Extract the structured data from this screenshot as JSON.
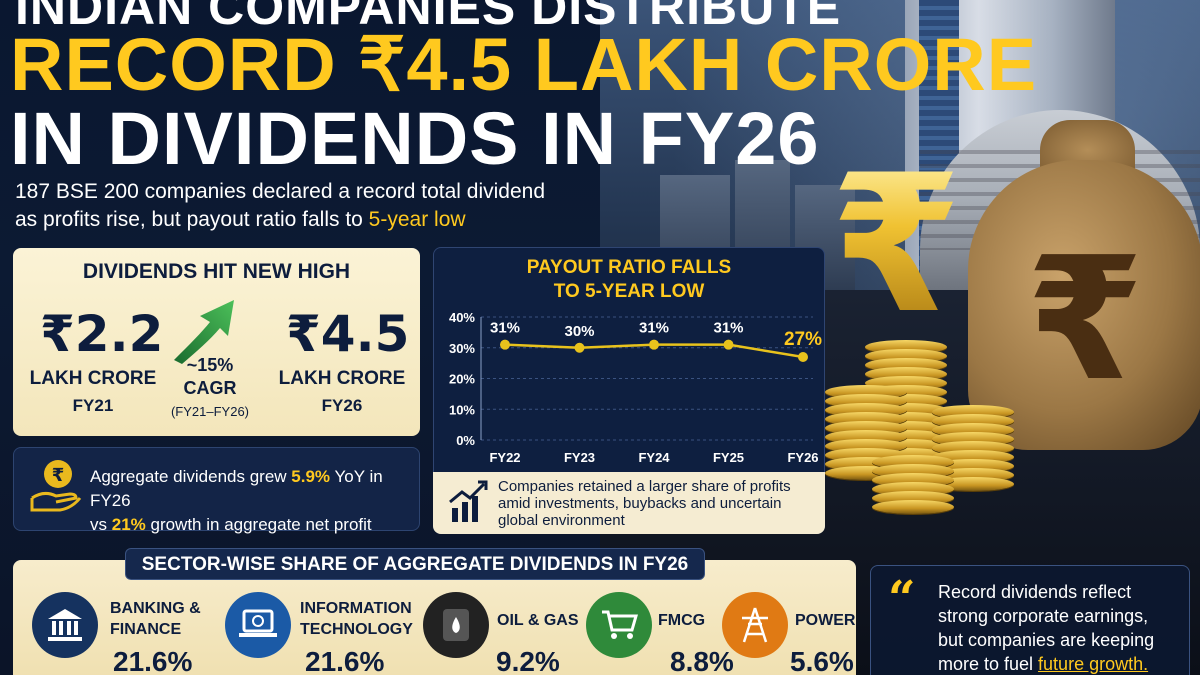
{
  "headline": {
    "line0": "INDIAN COMPANIES DISTRIBUTE",
    "line1": "RECORD ₹4.5 LAKH CRORE",
    "line2": "IN DIVIDENDS IN FY26"
  },
  "subhead": {
    "line1": "187 BSE 200 companies declared a record total dividend",
    "line2_pre": "as profits rise, but payout ratio falls to ",
    "line2_hl": "5-year low"
  },
  "dividends_card": {
    "title": "DIVIDENDS HIT NEW HIGH",
    "left": {
      "value": "₹2.2",
      "unit": "LAKH CRORE",
      "year": "FY21"
    },
    "right": {
      "value": "₹4.5",
      "unit": "LAKH CRORE",
      "year": "FY26"
    },
    "cagr": {
      "pct": "~15%",
      "label": "CAGR",
      "years": "(FY21–FY26)"
    }
  },
  "growth_card": {
    "pre": "Aggregate dividends grew ",
    "hl1": "5.9%",
    "mid": " YoY in FY26",
    "pre2": "vs ",
    "hl2": "21%",
    "post": " growth in aggregate net profit",
    "icon": "rupee-hand-icon"
  },
  "chart_data": {
    "type": "line",
    "title": "PAYOUT RATIO FALLS TO 5-YEAR LOW",
    "title_line1": "PAYOUT RATIO FALLS",
    "title_line2": "TO 5-YEAR LOW",
    "categories": [
      "FY22",
      "FY23",
      "FY24",
      "FY25",
      "FY26"
    ],
    "values": [
      31,
      30,
      31,
      31,
      27
    ],
    "labels": [
      "31%",
      "30%",
      "31%",
      "31%",
      "27%"
    ],
    "yticks": [
      "0%",
      "10%",
      "20%",
      "30%",
      "40%"
    ],
    "ylim": [
      0,
      40
    ],
    "grid": true,
    "line_color": "#e8c21c",
    "highlight_color": "#ffc91f",
    "note": "Companies retained a larger share of profits amid investments, buybacks and uncertain global environment",
    "note_icon": "growth-chart-icon"
  },
  "sectors": {
    "title": "SECTOR-WISE SHARE OF AGGREGATE DIVIDENDS IN FY26",
    "items": [
      {
        "name1": "BANKING &",
        "name2": "FINANCE",
        "value": "21.6%",
        "icon": "bank-icon",
        "color": "#15325f"
      },
      {
        "name1": "INFORMATION",
        "name2": "TECHNOLOGY",
        "value": "21.6%",
        "icon": "laptop-icon",
        "color": "#1b5aa6"
      },
      {
        "name1": "OIL & GAS",
        "name2": "",
        "value": "9.2%",
        "icon": "oil-barrel-icon",
        "color": "#222222"
      },
      {
        "name1": "FMCG",
        "name2": "",
        "value": "8.8%",
        "icon": "cart-icon",
        "color": "#2f8a3a"
      },
      {
        "name1": "POWER",
        "name2": "",
        "value": "5.6%",
        "icon": "power-tower-icon",
        "color": "#e07a14"
      }
    ]
  },
  "quote": {
    "line1": "Record dividends reflect",
    "line2": "strong corporate earnings,",
    "line3": "but companies are keeping",
    "line4_pre": "more to fuel ",
    "line4_hl": "future growth."
  }
}
